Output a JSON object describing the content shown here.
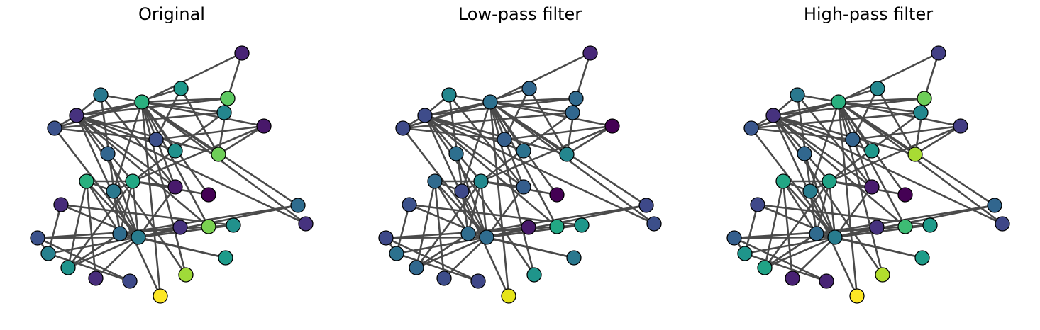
{
  "panels": [
    {
      "title": "Original",
      "colors": [
        "#287c8e",
        "#2f6c8e",
        "#22a884",
        "#2ab07f",
        "#472c7a",
        "#3b528b",
        "#27808e",
        "#1f948c",
        "#481a6c",
        "#440154",
        "#21918c",
        "#32658e",
        "#472c7a",
        "#2a788e",
        "#fde725",
        "#a0da39",
        "#3e4989",
        "#46327e",
        "#7ad151",
        "#2f6c8e",
        "#46337f",
        "#1e9b8a",
        "#21918c",
        "#6ece58",
        "#3c4f8a",
        "#1f988b",
        "#482475",
        "#48186a",
        "#24868e",
        "#5ec962",
        "#2a788e",
        "#3b528b",
        "#46327e",
        "#2ab07f"
      ]
    },
    {
      "title": "Low-pass filter",
      "colors": [
        "#2f6c8e",
        "#2f6c8e",
        "#23898e",
        "#306a8e",
        "#3b518b",
        "#3e4989",
        "#2c718e",
        "#31688e",
        "#355e8d",
        "#440154",
        "#1f978b",
        "#2e6f8e",
        "#3d4d8a",
        "#3e4989",
        "#e5e419",
        "#1f958b",
        "#3f4788",
        "#48196b",
        "#22a884",
        "#3e4989",
        "#3c4f8a",
        "#2a788e",
        "#2c728e",
        "#24868e",
        "#355f8d",
        "#31678e",
        "#482878",
        "#440154",
        "#31678e",
        "#306a8e",
        "#24878e",
        "#3e4a89",
        "#3e4c8a",
        "#2d708e"
      ]
    },
    {
      "title": "High-pass filter",
      "colors": [
        "#287c8e",
        "#306a8e",
        "#20a386",
        "#22a785",
        "#3f4889",
        "#355f8d",
        "#1f958b",
        "#20a386",
        "#481c6e",
        "#440154",
        "#1e9b8a",
        "#31678e",
        "#482173",
        "#287d8e",
        "#fde725",
        "#b2dd2d",
        "#482475",
        "#46327e",
        "#3dbc74",
        "#31668e",
        "#3f4788",
        "#1e9c89",
        "#1f988b",
        "#a8db34",
        "#33638d",
        "#24878e",
        "#423f85",
        "#433d84",
        "#23888e",
        "#6ece58",
        "#2a788e",
        "#39568c",
        "#46327e",
        "#2ab07f"
      ]
    }
  ]
}
